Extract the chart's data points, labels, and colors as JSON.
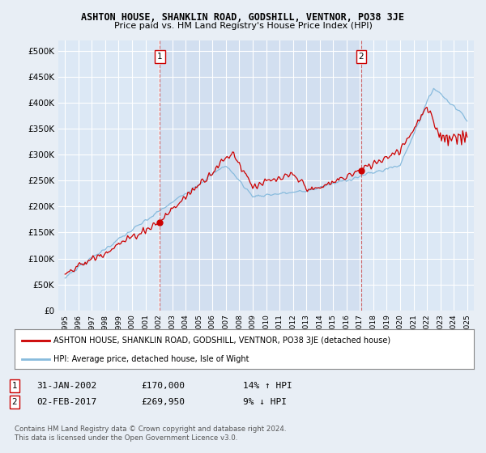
{
  "title": "ASHTON HOUSE, SHANKLIN ROAD, GODSHILL, VENTNOR, PO38 3JE",
  "subtitle": "Price paid vs. HM Land Registry's House Price Index (HPI)",
  "background_color": "#e8eef5",
  "plot_bg_color": "#dce8f5",
  "plot_bg_highlight": "#ccdaed",
  "grid_color": "#ffffff",
  "line1_color": "#cc0000",
  "line2_color": "#88bbdd",
  "marker_color": "#cc0000",
  "vline_color": "#cc4444",
  "sale1_date_x": 2002.08,
  "sale1_price": 170000,
  "sale2_date_x": 2017.09,
  "sale2_price": 269950,
  "ylim_min": 0,
  "ylim_max": 520000,
  "yticks": [
    0,
    50000,
    100000,
    150000,
    200000,
    250000,
    300000,
    350000,
    400000,
    450000,
    500000
  ],
  "ytick_labels": [
    "£0",
    "£50K",
    "£100K",
    "£150K",
    "£200K",
    "£250K",
    "£300K",
    "£350K",
    "£400K",
    "£450K",
    "£500K"
  ],
  "xlim_min": 1994.5,
  "xlim_max": 2025.5,
  "legend_line1": "ASHTON HOUSE, SHANKLIN ROAD, GODSHILL, VENTNOR, PO38 3JE (detached house)",
  "legend_line2": "HPI: Average price, detached house, Isle of Wight",
  "note1_label": "1",
  "note1_date": "31-JAN-2002",
  "note1_price": "£170,000",
  "note1_hpi": "14% ↑ HPI",
  "note2_label": "2",
  "note2_date": "02-FEB-2017",
  "note2_price": "£269,950",
  "note2_hpi": "9% ↓ HPI",
  "footer": "Contains HM Land Registry data © Crown copyright and database right 2024.\nThis data is licensed under the Open Government Licence v3.0."
}
